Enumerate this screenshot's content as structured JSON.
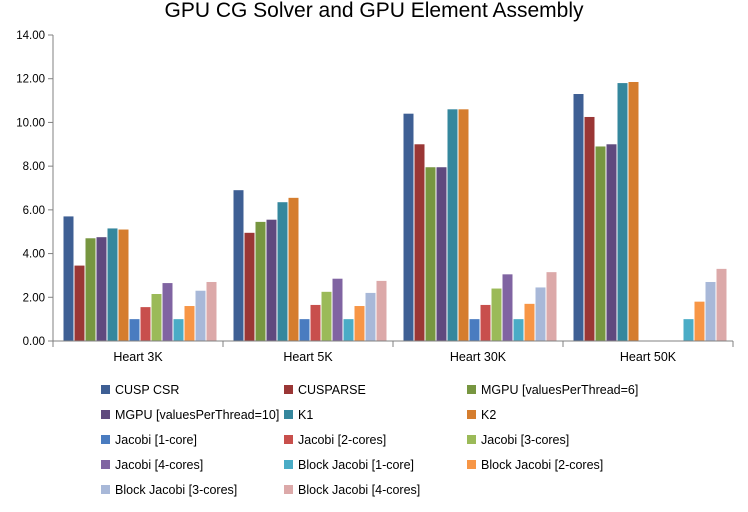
{
  "chart_data": {
    "type": "bar",
    "title": "GPU CG Solver and GPU Element Assembly",
    "xlabel": "",
    "ylabel": "",
    "ylim": [
      0,
      14
    ],
    "yticks": [
      0,
      2,
      4,
      6,
      8,
      10,
      12,
      14
    ],
    "ytick_labels": [
      "0.00",
      "2.00",
      "4.00",
      "6.00",
      "8.00",
      "10.00",
      "12.00",
      "14.00"
    ],
    "grid": false,
    "legend_position": "bottom",
    "categories": [
      "Heart 3K",
      "Heart 5K",
      "Heart 30K",
      "Heart 50K"
    ],
    "series": [
      {
        "name": "CUSP CSR",
        "color": "#3e5f94",
        "values": [
          5.7,
          6.9,
          10.4,
          11.3
        ]
      },
      {
        "name": "CUSPARSE",
        "color": "#9a3635",
        "values": [
          3.45,
          4.95,
          9.0,
          10.25
        ]
      },
      {
        "name": "MGPU [valuesPerThread=6]",
        "color": "#779640",
        "values": [
          4.7,
          5.45,
          7.95,
          8.9
        ]
      },
      {
        "name": "MGPU [valuesPerThread=10]",
        "color": "#5f4a7e",
        "values": [
          4.75,
          5.55,
          7.95,
          9.0
        ]
      },
      {
        "name": "K1",
        "color": "#35879d",
        "values": [
          5.15,
          6.35,
          10.6,
          11.8
        ]
      },
      {
        "name": "K2",
        "color": "#d57d2e",
        "values": [
          5.1,
          6.55,
          10.6,
          11.85
        ]
      },
      {
        "name": "Jacobi [1-core]",
        "color": "#4a7cc0",
        "values": [
          1.0,
          1.0,
          1.0,
          null
        ]
      },
      {
        "name": "Jacobi [2-cores]",
        "color": "#c84f4c",
        "values": [
          1.55,
          1.65,
          1.65,
          null
        ]
      },
      {
        "name": "Jacobi [3-cores]",
        "color": "#9bba58",
        "values": [
          2.15,
          2.25,
          2.4,
          null
        ]
      },
      {
        "name": "Jacobi [4-cores]",
        "color": "#8064a2",
        "values": [
          2.65,
          2.85,
          3.05,
          null
        ]
      },
      {
        "name": "Block Jacobi [1-core]",
        "color": "#4aacc6",
        "values": [
          1.0,
          1.0,
          1.0,
          1.0
        ]
      },
      {
        "name": "Block Jacobi [2-cores]",
        "color": "#f79646",
        "values": [
          1.6,
          1.6,
          1.7,
          1.8
        ]
      },
      {
        "name": "Block Jacobi [3-cores]",
        "color": "#a8b8d8",
        "values": [
          2.3,
          2.2,
          2.45,
          2.7
        ]
      },
      {
        "name": "Block Jacobi [4-cores]",
        "color": "#dca9a9",
        "values": [
          2.7,
          2.75,
          3.15,
          3.3
        ]
      }
    ]
  }
}
